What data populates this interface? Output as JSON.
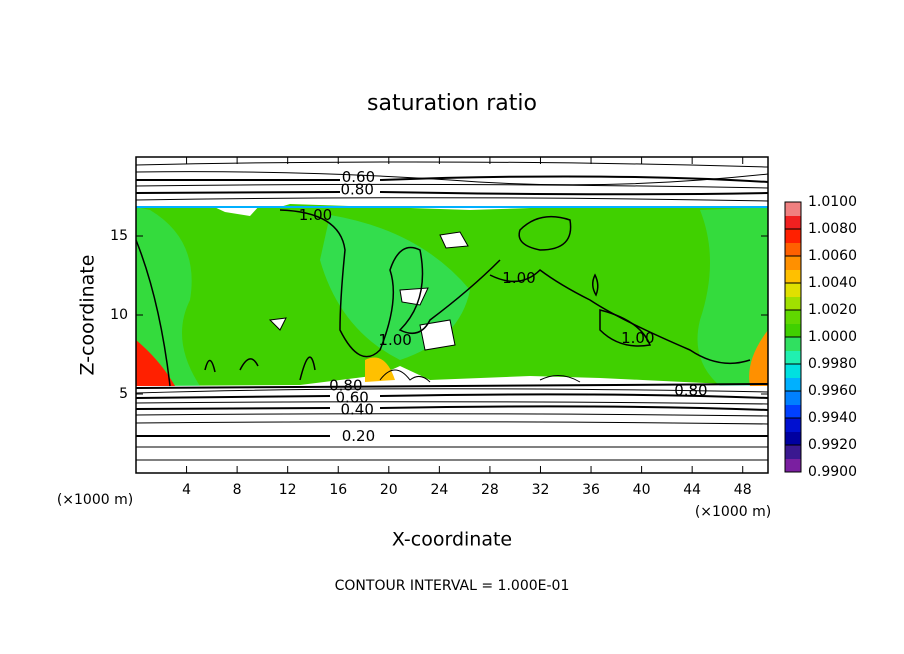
{
  "chart_data": {
    "type": "contour",
    "title": "saturation ratio",
    "x_label": "X-coordinate",
    "y_label": "Z-coordinate",
    "x_unit": "(×1000 m)",
    "footer": "CONTOUR INTERVAL = 1.000E-01",
    "xlim": [
      0,
      50
    ],
    "xticks": [
      4,
      8,
      12,
      16,
      20,
      24,
      28,
      32,
      36,
      40,
      44,
      48
    ],
    "ylim": [
      0,
      20
    ],
    "yticks": [
      5,
      10,
      15
    ],
    "colorbar": {
      "lim": [
        0.99,
        1.01
      ],
      "ticks": [
        {
          "value": 0.99,
          "label": "0.9900"
        },
        {
          "value": 0.992,
          "label": "0.9920"
        },
        {
          "value": 0.994,
          "label": "0.9940"
        },
        {
          "value": 0.996,
          "label": "0.9960"
        },
        {
          "value": 0.998,
          "label": "0.9980"
        },
        {
          "value": 1.0,
          "label": "1.0000"
        },
        {
          "value": 1.002,
          "label": "1.0020"
        },
        {
          "value": 1.004,
          "label": "1.0040"
        },
        {
          "value": 1.006,
          "label": "1.0060"
        },
        {
          "value": 1.008,
          "label": "1.0080"
        },
        {
          "value": 1.01,
          "label": "1.0100"
        }
      ],
      "colors": [
        "#7a1fa0",
        "#3a1890",
        "#0000a0",
        "#0010d0",
        "#0040ff",
        "#0080ff",
        "#00b0ff",
        "#00e0e0",
        "#20f0b0",
        "#30e060",
        "#40d000",
        "#60d800",
        "#a0e000",
        "#e0e000",
        "#ffc000",
        "#ff9000",
        "#ff6000",
        "#ff2000",
        "#f02020",
        "#f08080"
      ]
    },
    "contour_labels": [
      {
        "value": 0.6,
        "label": "0.60",
        "x": 17.6,
        "y": 18.7
      },
      {
        "value": 0.8,
        "label": "0.80",
        "x": 17.5,
        "y": 17.9
      },
      {
        "value": 1.0,
        "label": "1.00",
        "x": 14.2,
        "y": 16.3
      },
      {
        "value": 1.0,
        "label": "1.00",
        "x": 30.3,
        "y": 12.3
      },
      {
        "value": 1.0,
        "label": "1.00",
        "x": 20.5,
        "y": 8.4
      },
      {
        "value": 1.0,
        "label": "1.00",
        "x": 39.7,
        "y": 8.5
      },
      {
        "value": 0.8,
        "label": "0.80",
        "x": 16.6,
        "y": 5.5
      },
      {
        "value": 0.6,
        "label": "0.60",
        "x": 17.1,
        "y": 4.75
      },
      {
        "value": 0.4,
        "label": "0.40",
        "x": 17.5,
        "y": 4.0
      },
      {
        "value": 0.2,
        "label": "0.20",
        "x": 17.6,
        "y": 2.3
      },
      {
        "value": 0.8,
        "label": "0.80",
        "x": 43.9,
        "y": 5.2
      }
    ]
  }
}
